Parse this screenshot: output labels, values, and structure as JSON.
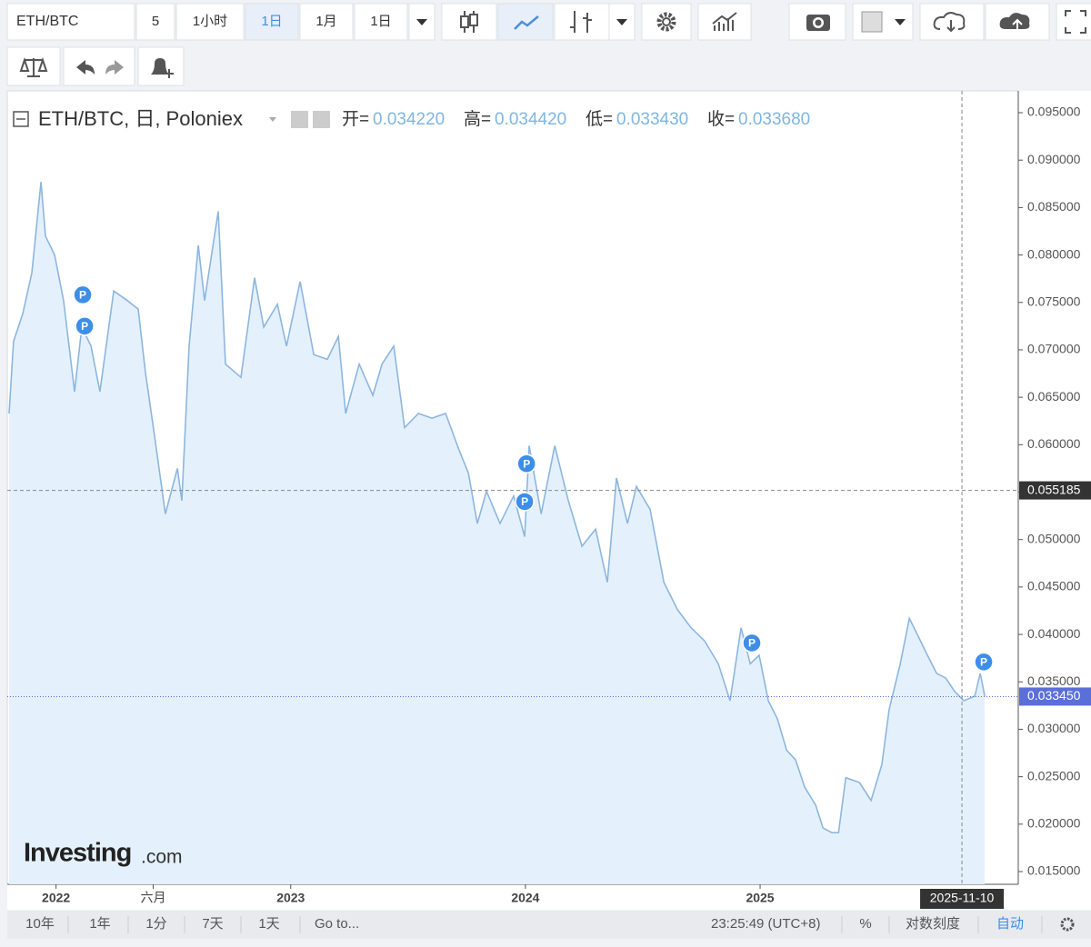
{
  "toolbar": {
    "symbol": "ETH/BTC",
    "buttons": [
      "5",
      "1小时",
      "1日",
      "1月",
      "1日"
    ]
  },
  "chart_data": {
    "type": "area",
    "legend_title": "ETH/BTC, 日, Poloniex",
    "ohlc": [
      {
        "name": "开=",
        "value": "0.034220"
      },
      {
        "name": "高=",
        "value": "0.034420"
      },
      {
        "name": "低=",
        "value": "0.033430"
      },
      {
        "name": "收=",
        "value": "0.033680"
      }
    ],
    "color": "#8db6df",
    "fill_color": "#e4f1fc",
    "x": [
      2021.8,
      2021.819,
      2021.858,
      2021.897,
      2021.936,
      2021.955,
      2021.994,
      2022.032,
      2022.079,
      2022.11,
      2022.149,
      2022.187,
      2022.246,
      2022.304,
      2022.35,
      2022.381,
      2022.42,
      2022.466,
      2022.517,
      2022.536,
      2022.567,
      2022.606,
      2022.633,
      2022.691,
      2022.722,
      2022.788,
      2022.846,
      2022.885,
      2022.943,
      2022.982,
      2023.04,
      2023.098,
      2023.156,
      2023.203,
      2023.234,
      2023.292,
      2023.35,
      2023.389,
      2023.439,
      2023.485,
      2023.544,
      2023.602,
      2023.66,
      2023.718,
      2023.757,
      2023.795,
      2023.834,
      2023.892,
      2023.95,
      2023.997,
      2024.016,
      2024.067,
      2024.125,
      2024.183,
      2024.241,
      2024.299,
      2024.349,
      2024.388,
      2024.435,
      2024.473,
      2024.531,
      2024.59,
      2024.648,
      2024.706,
      2024.764,
      2024.822,
      2024.872,
      2024.919,
      2024.958,
      2024.996,
      2025.035,
      2025.074,
      2025.113,
      2025.151,
      2025.19,
      2025.237,
      2025.268,
      2025.306,
      2025.334,
      2025.365,
      2025.423,
      2025.473,
      2025.519,
      2025.55,
      2025.597,
      2025.636,
      2025.674,
      2025.713,
      2025.752,
      2025.791,
      2025.829,
      2025.868,
      2025.915,
      2025.938,
      2025.957
    ],
    "values": [
      0.0633,
      0.0709,
      0.0738,
      0.0781,
      0.0877,
      0.082,
      0.08,
      0.0752,
      0.0656,
      0.0724,
      0.0704,
      0.0656,
      0.0762,
      0.0752,
      0.0743,
      0.0676,
      0.0609,
      0.0527,
      0.0575,
      0.0541,
      0.0704,
      0.081,
      0.0752,
      0.0846,
      0.0685,
      0.0671,
      0.0776,
      0.0724,
      0.0748,
      0.0704,
      0.0772,
      0.0695,
      0.069,
      0.0714,
      0.0633,
      0.0685,
      0.0652,
      0.0685,
      0.0704,
      0.0618,
      0.0633,
      0.0628,
      0.0633,
      0.0594,
      0.057,
      0.0517,
      0.0551,
      0.0517,
      0.0546,
      0.0503,
      0.0599,
      0.0527,
      0.0599,
      0.0541,
      0.0493,
      0.0511,
      0.0455,
      0.0565,
      0.0517,
      0.0556,
      0.0532,
      0.0455,
      0.0426,
      0.0407,
      0.0393,
      0.0369,
      0.033,
      0.0407,
      0.0369,
      0.0378,
      0.033,
      0.0311,
      0.0278,
      0.0268,
      0.0239,
      0.022,
      0.0196,
      0.0191,
      0.0191,
      0.0249,
      0.0244,
      0.0225,
      0.0263,
      0.0321,
      0.0369,
      0.0417,
      0.0398,
      0.0378,
      0.0359,
      0.0354,
      0.034,
      0.033,
      0.0335,
      0.0359,
      0.0335
    ],
    "xlim": [
      2021.8,
      2026.1
    ],
    "xticks": [
      2022,
      {
        "value": 2022.414,
        "label": "六月"
      },
      2023,
      2024,
      2025
    ],
    "ylim": [
      0.01366,
      0.0973
    ],
    "yticks": [
      {
        "value": 0.015,
        "label": "0.015000"
      },
      {
        "value": 0.02,
        "label": "0.020000"
      },
      {
        "value": 0.025,
        "label": "0.025000"
      },
      {
        "value": 0.03,
        "label": "0.030000"
      },
      {
        "value": 0.035,
        "label": "0.035000"
      },
      {
        "value": 0.04,
        "label": "0.040000"
      },
      {
        "value": 0.045,
        "label": "0.045000"
      },
      {
        "value": 0.05,
        "label": "0.050000"
      },
      {
        "value": 0.055,
        "label": "0.055000"
      },
      {
        "value": 0.06,
        "label": "0.060000"
      },
      {
        "value": 0.065,
        "label": "0.065000"
      },
      {
        "value": 0.07,
        "label": "0.070000"
      },
      {
        "value": 0.075,
        "label": "0.075000"
      },
      {
        "value": 0.08,
        "label": "0.080000"
      },
      {
        "value": 0.085,
        "label": "0.085000"
      },
      {
        "value": 0.09,
        "label": "0.090000"
      },
      {
        "value": 0.095,
        "label": "0.095000"
      }
    ],
    "grid": false,
    "crosshair": {
      "y": 0.055185,
      "x": {
        "value": 2025.86,
        "label": "2025-11-10"
      }
    },
    "last_price": {
      "value": 0.03345,
      "label": "0.033450",
      "color": "#5b6fd8"
    },
    "marker_label": "P",
    "marker_color": "#3d8ee8",
    "markers": [
      {
        "x": 2022.114,
        "y": 0.0758
      },
      {
        "x": 2022.122,
        "y": 0.0725
      },
      {
        "x": 2024.005,
        "y": 0.058
      },
      {
        "x": 2023.997,
        "y": 0.054
      },
      {
        "x": 2024.965,
        "y": 0.0391
      },
      {
        "x": 2025.953,
        "y": 0.0371
      }
    ]
  },
  "watermark": {
    "brand": "Investing",
    "suffix": ".com"
  },
  "bottom_bar": {
    "ranges": [
      "10年",
      "1年",
      "1分",
      "7天",
      "1天"
    ],
    "goto": "Go to...",
    "time": "23:25:49 (UTC+8)",
    "percent": "%",
    "log": "对数刻度",
    "auto": "自动"
  }
}
